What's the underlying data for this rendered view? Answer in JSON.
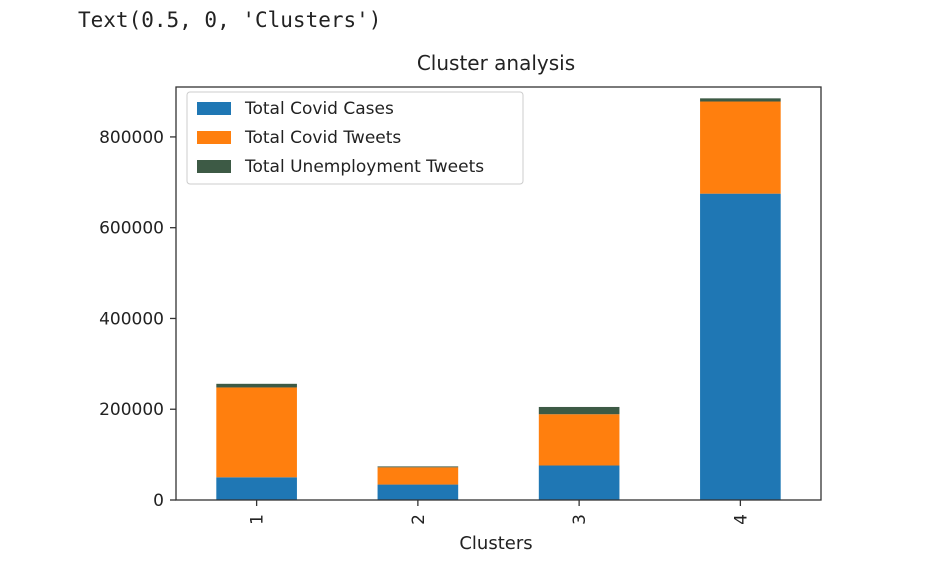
{
  "output": {
    "text": "Text(0.5, 0, 'Clusters')"
  },
  "chart_data": {
    "type": "bar",
    "stacked": true,
    "title": "Cluster analysis",
    "xlabel": "Clusters",
    "ylabel": "",
    "categories": [
      "1",
      "2",
      "3",
      "4"
    ],
    "ylim": [
      0,
      910000
    ],
    "yticks": [
      0,
      200000,
      400000,
      600000,
      800000
    ],
    "ytick_labels": [
      "0",
      "200000",
      "400000",
      "600000",
      "800000"
    ],
    "grid": false,
    "legend_position": "upper-left",
    "series": [
      {
        "name": "Total Covid Cases",
        "color": "#1f77b4",
        "values": [
          50000,
          34000,
          76000,
          675000
        ]
      },
      {
        "name": "Total Covid Tweets",
        "color": "#ff7f0e",
        "values": [
          198000,
          38000,
          113000,
          203000
        ]
      },
      {
        "name": "Total Unemployment Tweets",
        "color": "#3d5a45",
        "values": [
          8000,
          2000,
          16000,
          7000
        ]
      }
    ]
  }
}
